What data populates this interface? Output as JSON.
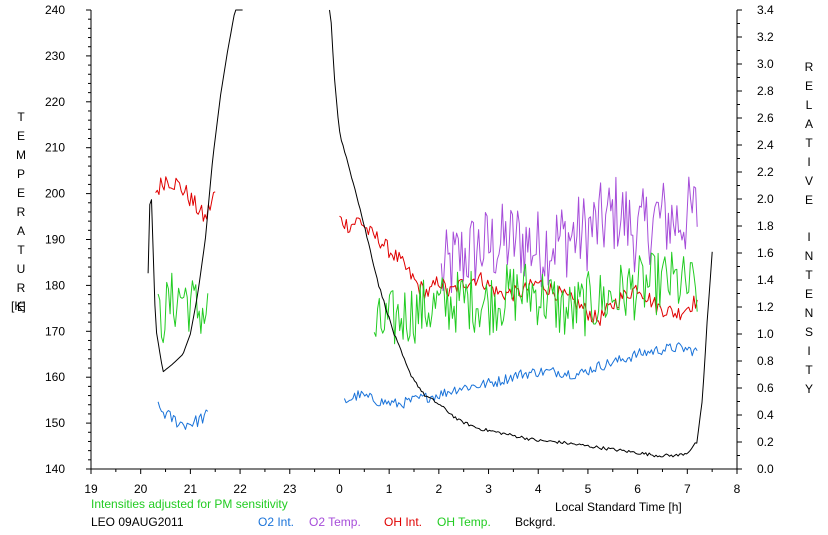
{
  "chart_data": {
    "type": "line",
    "left_axis_title": "TEMPERATURE",
    "left_axis_unit": "[K]",
    "right_axis_title": "RELATIVE  INTENSITY",
    "xlabel": "Local Standard Time [h]",
    "x_tick_labels": [
      "19",
      "20",
      "21",
      "22",
      "23",
      "0",
      "1",
      "2",
      "3",
      "4",
      "5",
      "6",
      "7",
      "8"
    ],
    "x_range": [
      19,
      32
    ],
    "left_ylim": [
      140,
      240
    ],
    "left_ticks": [
      140,
      150,
      160,
      170,
      180,
      190,
      200,
      210,
      220,
      230,
      240
    ],
    "right_ylim": [
      0.0,
      3.4
    ],
    "right_ticks": [
      "0.0",
      "0.2",
      "0.4",
      "0.6",
      "0.8",
      "1.0",
      "1.2",
      "1.4",
      "1.6",
      "1.8",
      "2.0",
      "2.2",
      "2.4",
      "2.6",
      "2.8",
      "3.0",
      "3.2",
      "3.4"
    ],
    "annotation": "Intensities adjusted for PM sensitivity",
    "annotation_color": "#22cc22",
    "station_label": "LEO 09AUG2011",
    "legend": [
      {
        "label": "O2 Int.",
        "color": "#1a73d9"
      },
      {
        "label": "O2 Temp.",
        "color": "#a64dd9"
      },
      {
        "label": "OH Int.",
        "color": "#e00000"
      },
      {
        "label": "OH Temp.",
        "color": "#22cc22"
      },
      {
        "label": "Bckgrd.",
        "color": "#000000"
      }
    ],
    "series": [
      {
        "name": "O2 Temp.",
        "color": "#a64dd9",
        "axis": "left",
        "segments": [
          {
            "x": [
              26.05,
              26.4,
              26.8,
              27.2,
              27.6,
              28.0,
              28.4,
              28.8,
              29.2,
              29.6,
              30.0,
              30.4,
              30.8,
              31.2
            ],
            "y": [
              182,
              186,
              188,
              189,
              190,
              188,
              190,
              191,
              193,
              196,
              191,
              195,
              194,
              196
            ],
            "amp": 9
          }
        ]
      },
      {
        "name": "OH Int.",
        "color": "#e00000",
        "axis": "right",
        "segments": [
          {
            "x": [
              20.3,
              20.5,
              20.7,
              20.9,
              21.1,
              21.3,
              21.5
            ],
            "y": [
              2.05,
              2.15,
              2.12,
              2.05,
              1.95,
              1.85,
              2.05
            ],
            "amp": 0.07
          },
          {
            "x": [
              24.0,
              24.2,
              24.4,
              24.6,
              24.8,
              25.0,
              25.2,
              25.4,
              25.6,
              25.8,
              26.0,
              26.2,
              26.5,
              26.8,
              27.2,
              27.6,
              28.0,
              28.4,
              28.8,
              29.2,
              29.6,
              30.0,
              30.4,
              30.8,
              31.2
            ],
            "y": [
              1.85,
              1.8,
              1.85,
              1.75,
              1.7,
              1.62,
              1.55,
              1.45,
              1.35,
              1.3,
              1.4,
              1.3,
              1.38,
              1.42,
              1.3,
              1.3,
              1.38,
              1.3,
              1.22,
              1.1,
              1.25,
              1.35,
              1.2,
              1.15,
              1.25
            ],
            "amp": 0.06
          }
        ]
      },
      {
        "name": "OH Temp.",
        "color": "#22cc22",
        "axis": "left",
        "segments": [
          {
            "x": [
              20.35,
              20.6,
              20.85,
              21.1,
              21.35
            ],
            "y": [
              172,
              176,
              178,
              175,
              174
            ],
            "amp": 7
          },
          {
            "x": [
              24.7,
              25.0,
              25.4,
              25.8,
              26.2,
              26.6,
              27.0,
              27.4,
              27.8,
              28.2,
              28.6,
              29.0,
              29.4,
              29.8,
              30.2,
              30.6,
              31.2
            ],
            "y": [
              170,
              172,
              174,
              175,
              176,
              177,
              176,
              178,
              179,
              177,
              174,
              176,
              177,
              179,
              180,
              181,
              179
            ],
            "amp": 7
          }
        ]
      },
      {
        "name": "O2 Int.",
        "color": "#1a73d9",
        "axis": "right",
        "segments": [
          {
            "x": [
              20.35,
              20.6,
              20.85,
              21.1,
              21.35
            ],
            "y": [
              0.45,
              0.38,
              0.33,
              0.35,
              0.4
            ],
            "amp": 0.05
          },
          {
            "x": [
              24.1,
              24.4,
              24.8,
              25.2,
              25.6,
              26.0,
              26.4,
              26.8,
              27.2,
              27.6,
              28.0,
              28.4,
              28.8,
              29.2,
              29.6,
              30.0,
              30.4,
              30.8,
              31.2
            ],
            "y": [
              0.5,
              0.55,
              0.5,
              0.48,
              0.52,
              0.55,
              0.6,
              0.62,
              0.65,
              0.7,
              0.72,
              0.72,
              0.7,
              0.76,
              0.8,
              0.85,
              0.88,
              0.9,
              0.87
            ],
            "amp": 0.04
          }
        ]
      },
      {
        "name": "Bckgrd.",
        "color": "#000000",
        "axis": "right",
        "segments": [
          {
            "x": [
              20.15,
              20.2,
              20.3,
              20.45,
              20.65,
              20.85,
              21.0,
              21.15,
              21.3,
              21.45,
              21.6,
              21.75,
              21.9,
              22.05
            ],
            "y": [
              1.45,
              2.2,
              1.05,
              0.72,
              0.78,
              0.85,
              1.0,
              1.3,
              1.7,
              2.3,
              2.75,
              3.1,
              3.4,
              3.5
            ],
            "amp": 0
          },
          {
            "x": [
              23.8,
              23.9,
              24.0,
              24.1,
              24.3,
              24.5,
              24.8,
              25.1,
              25.4,
              25.7,
              26.0,
              26.4,
              26.8,
              27.2,
              27.6,
              28.0,
              28.4,
              28.8,
              29.2,
              29.6,
              30.0,
              30.4,
              30.8,
              31.0,
              31.2,
              31.3,
              31.4,
              31.5
            ],
            "y": [
              3.5,
              2.9,
              2.5,
              2.35,
              2.1,
              1.8,
              1.35,
              1.0,
              0.72,
              0.55,
              0.48,
              0.36,
              0.3,
              0.27,
              0.24,
              0.21,
              0.2,
              0.18,
              0.16,
              0.14,
              0.12,
              0.1,
              0.1,
              0.12,
              0.2,
              0.5,
              1.1,
              1.6
            ],
            "amp": 0.012
          }
        ]
      }
    ]
  }
}
